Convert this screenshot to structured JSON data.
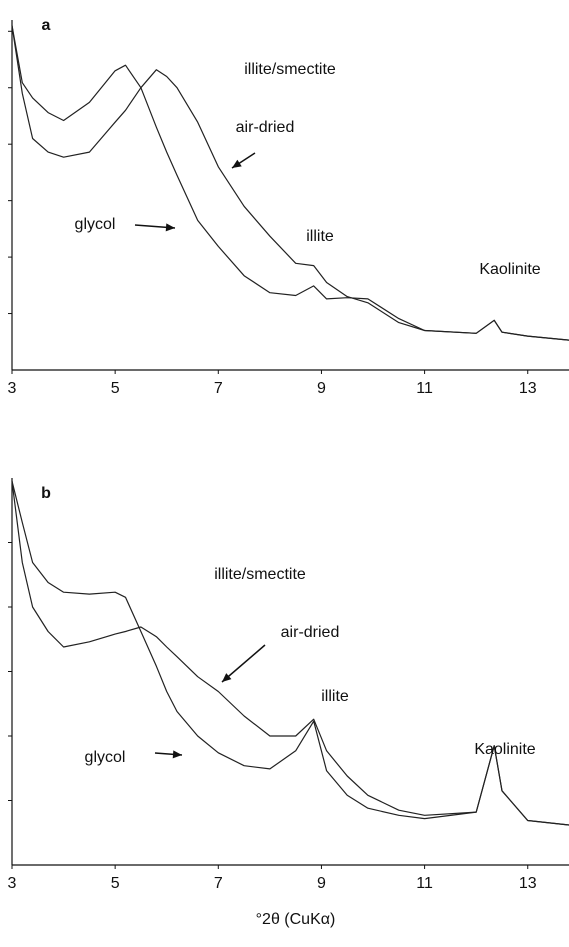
{
  "chart_data": [
    {
      "type": "line",
      "panel_label": "a",
      "x": [
        3.0,
        3.2,
        3.4,
        3.7,
        4.0,
        4.5,
        5.0,
        5.2,
        5.5,
        5.8,
        6.0,
        6.2,
        6.6,
        7.0,
        7.5,
        8.0,
        8.5,
        8.85,
        9.1,
        9.5,
        9.9,
        10.5,
        11.0,
        12.0,
        12.35,
        12.5,
        13.0,
        13.8
      ],
      "series": [
        {
          "name": "air-dried",
          "color": "#222222",
          "values": [
            6.1,
            4.9,
            4.1,
            3.86,
            3.77,
            3.86,
            4.39,
            4.6,
            5.0,
            5.32,
            5.2,
            5.0,
            4.39,
            3.6,
            2.9,
            2.37,
            1.89,
            1.85,
            1.55,
            1.3,
            1.19,
            0.84,
            0.7,
            0.65,
            0.88,
            0.67,
            0.6,
            0.53
          ]
        },
        {
          "name": "glycol",
          "color": "#222222",
          "values": [
            6.1,
            5.09,
            4.82,
            4.56,
            4.42,
            4.74,
            5.3,
            5.4,
            5.0,
            4.3,
            3.86,
            3.45,
            2.65,
            2.19,
            1.67,
            1.37,
            1.32,
            1.49,
            1.26,
            1.28,
            1.26,
            0.91,
            0.7,
            0.65,
            0.88,
            0.67,
            0.6,
            0.53
          ]
        }
      ],
      "annotations": [
        "illite/smectite",
        "air-dried",
        "glycol",
        "illite",
        "Kaolinite"
      ],
      "xlim": [
        3,
        13.8
      ],
      "xticks": [
        3,
        5,
        7,
        9,
        11,
        13
      ],
      "ylim": [
        0,
        6.2
      ],
      "yticks": [
        1,
        2,
        3,
        4,
        5,
        6
      ]
    },
    {
      "type": "line",
      "panel_label": "b",
      "xlabel": "°2θ (CuKα)",
      "x": [
        3.0,
        3.2,
        3.4,
        3.7,
        4.0,
        4.5,
        5.0,
        5.2,
        5.5,
        5.8,
        6.0,
        6.2,
        6.6,
        7.0,
        7.5,
        8.0,
        8.5,
        8.85,
        9.1,
        9.5,
        9.9,
        10.5,
        11.0,
        12.0,
        12.35,
        12.5,
        13.0,
        13.8
      ],
      "series": [
        {
          "name": "air-dried",
          "color": "#222222",
          "values": [
            5.95,
            4.69,
            4.0,
            3.62,
            3.38,
            3.46,
            3.58,
            3.62,
            3.69,
            3.54,
            3.38,
            3.23,
            2.92,
            2.69,
            2.31,
            2.0,
            2.0,
            2.26,
            1.77,
            1.38,
            1.08,
            0.85,
            0.77,
            0.82,
            1.85,
            1.15,
            0.69,
            0.62
          ]
        },
        {
          "name": "glycol",
          "color": "#222222",
          "values": [
            5.95,
            5.31,
            4.69,
            4.38,
            4.23,
            4.2,
            4.23,
            4.15,
            3.62,
            3.08,
            2.69,
            2.38,
            2.0,
            1.74,
            1.54,
            1.49,
            1.77,
            2.23,
            1.46,
            1.08,
            0.88,
            0.77,
            0.72,
            0.82,
            1.85,
            1.15,
            0.69,
            0.62
          ]
        }
      ],
      "annotations": [
        "illite/smectite",
        "air-dried",
        "glycol",
        "illite",
        "Kaolinite"
      ],
      "xlim": [
        3,
        13.8
      ],
      "xticks": [
        3,
        5,
        7,
        9,
        11,
        13
      ],
      "ylim": [
        0,
        6
      ],
      "yticks": [
        1,
        2,
        3,
        4,
        5
      ]
    }
  ]
}
